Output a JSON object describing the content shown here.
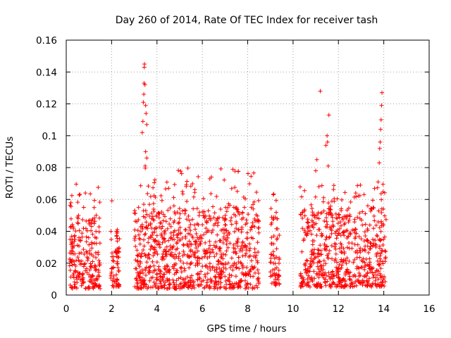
{
  "chart_data": {
    "type": "scatter",
    "title": "Day 260 of 2014, Rate Of TEC Index for receiver tash",
    "xlabel": "GPS time / hours",
    "ylabel": "ROTI / TECUs",
    "xlim": [
      0,
      16
    ],
    "ylim": [
      0,
      0.16
    ],
    "x_ticks": [
      0,
      2,
      4,
      6,
      8,
      10,
      12,
      14,
      16
    ],
    "x_tick_labels": [
      "0",
      "2",
      "4",
      "6",
      "8",
      "10",
      "12",
      "14",
      "16"
    ],
    "y_ticks": [
      0,
      0.02,
      0.04,
      0.06,
      0.08,
      0.1,
      0.12,
      0.14,
      0.16
    ],
    "y_tick_labels": [
      "0",
      "0.02",
      "0.04",
      "0.06",
      "0.08",
      "0.1",
      "0.12",
      "0.14",
      "0.16"
    ],
    "grid": true,
    "marker": "+",
    "marker_color": "#ff0000",
    "series": [
      {
        "name": "ROTI",
        "observation_windows": [
          {
            "x": [
              0.15,
              1.5
            ],
            "y_base": [
              0.004,
              0.05
            ],
            "y_max": 0.07
          },
          {
            "x": [
              1.95,
              2.35
            ],
            "y_base": [
              0.005,
              0.04
            ],
            "y_max": 0.062
          },
          {
            "x": [
              3.0,
              8.5
            ],
            "y_base": [
              0.004,
              0.055
            ],
            "y_max": 0.08
          },
          {
            "x": [
              9.0,
              9.4
            ],
            "y_base": [
              0.006,
              0.05
            ],
            "y_max": 0.064
          },
          {
            "x": [
              10.3,
              14.1
            ],
            "y_base": [
              0.005,
              0.055
            ],
            "y_max": 0.07
          }
        ],
        "peaks": [
          {
            "x": 3.35,
            "y": 0.102
          },
          {
            "x": 3.38,
            "y": 0.109
          },
          {
            "x": 3.4,
            "y": 0.121
          },
          {
            "x": 3.42,
            "y": 0.126
          },
          {
            "x": 3.43,
            "y": 0.133
          },
          {
            "x": 3.44,
            "y": 0.143
          },
          {
            "x": 3.45,
            "y": 0.145
          },
          {
            "x": 3.47,
            "y": 0.132
          },
          {
            "x": 3.5,
            "y": 0.119
          },
          {
            "x": 3.52,
            "y": 0.114
          },
          {
            "x": 3.55,
            "y": 0.107
          },
          {
            "x": 3.5,
            "y": 0.09
          },
          {
            "x": 3.48,
            "y": 0.081
          },
          {
            "x": 3.55,
            "y": 0.086
          },
          {
            "x": 11.0,
            "y": 0.078
          },
          {
            "x": 11.05,
            "y": 0.085
          },
          {
            "x": 11.2,
            "y": 0.128
          },
          {
            "x": 11.45,
            "y": 0.094
          },
          {
            "x": 11.5,
            "y": 0.1
          },
          {
            "x": 11.52,
            "y": 0.096
          },
          {
            "x": 11.55,
            "y": 0.081
          },
          {
            "x": 11.58,
            "y": 0.113
          },
          {
            "x": 13.75,
            "y": 0.071
          },
          {
            "x": 13.8,
            "y": 0.083
          },
          {
            "x": 13.82,
            "y": 0.092
          },
          {
            "x": 13.84,
            "y": 0.096
          },
          {
            "x": 13.86,
            "y": 0.104
          },
          {
            "x": 13.88,
            "y": 0.11
          },
          {
            "x": 13.9,
            "y": 0.119
          },
          {
            "x": 13.92,
            "y": 0.127
          }
        ]
      }
    ]
  }
}
